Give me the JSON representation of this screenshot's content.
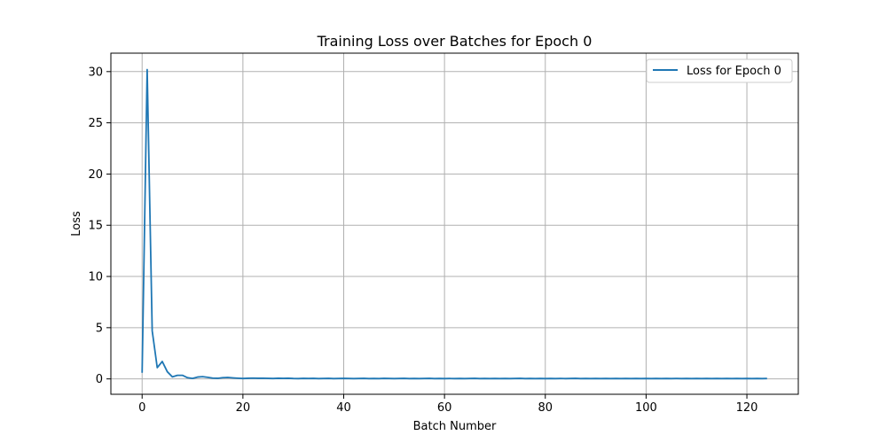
{
  "chart_data": {
    "type": "line",
    "title": "Training Loss over Batches for Epoch 0",
    "xlabel": "Batch Number",
    "ylabel": "Loss",
    "xlim": [
      -6.2,
      130.2
    ],
    "ylim": [
      -1.5,
      31.8
    ],
    "xticks": [
      0,
      20,
      40,
      60,
      80,
      100,
      120
    ],
    "yticks": [
      0,
      5,
      10,
      15,
      20,
      25,
      30
    ],
    "grid": true,
    "legend_position": "top-right",
    "series": [
      {
        "name": "Loss for Epoch 0",
        "color": "#1f77b4",
        "x": [
          0,
          1,
          2,
          3,
          4,
          5,
          6,
          7,
          8,
          9,
          10,
          11,
          12,
          13,
          14,
          15,
          16,
          17,
          18,
          19,
          20,
          21,
          22,
          23,
          24,
          25,
          26,
          27,
          28,
          29,
          30,
          31,
          32,
          33,
          34,
          35,
          36,
          37,
          38,
          39,
          40,
          41,
          42,
          43,
          44,
          45,
          46,
          47,
          48,
          49,
          50,
          51,
          52,
          53,
          54,
          55,
          56,
          57,
          58,
          59,
          60,
          61,
          62,
          63,
          64,
          65,
          66,
          67,
          68,
          69,
          70,
          71,
          72,
          73,
          74,
          75,
          76,
          77,
          78,
          79,
          80,
          81,
          82,
          83,
          84,
          85,
          86,
          87,
          88,
          89,
          90,
          91,
          92,
          93,
          94,
          95,
          96,
          97,
          98,
          99,
          100,
          101,
          102,
          103,
          104,
          105,
          106,
          107,
          108,
          109,
          110,
          111,
          112,
          113,
          114,
          115,
          116,
          117,
          118,
          119,
          120,
          121,
          122,
          123,
          124
        ],
        "values": [
          0.6,
          30.2,
          4.7,
          1.1,
          1.7,
          0.7,
          0.2,
          0.35,
          0.35,
          0.12,
          0.05,
          0.18,
          0.22,
          0.15,
          0.08,
          0.06,
          0.12,
          0.14,
          0.1,
          0.07,
          0.04,
          0.06,
          0.08,
          0.06,
          0.07,
          0.05,
          0.04,
          0.06,
          0.05,
          0.06,
          0.04,
          0.03,
          0.05,
          0.04,
          0.05,
          0.03,
          0.04,
          0.05,
          0.03,
          0.04,
          0.05,
          0.04,
          0.03,
          0.04,
          0.05,
          0.03,
          0.04,
          0.03,
          0.05,
          0.04,
          0.03,
          0.04,
          0.05,
          0.03,
          0.04,
          0.03,
          0.04,
          0.05,
          0.03,
          0.04,
          0.03,
          0.04,
          0.03,
          0.04,
          0.03,
          0.04,
          0.05,
          0.03,
          0.04,
          0.03,
          0.04,
          0.03,
          0.04,
          0.03,
          0.04,
          0.05,
          0.03,
          0.04,
          0.03,
          0.04,
          0.03,
          0.04,
          0.03,
          0.04,
          0.03,
          0.04,
          0.05,
          0.03,
          0.04,
          0.03,
          0.04,
          0.03,
          0.04,
          0.03,
          0.04,
          0.03,
          0.04,
          0.03,
          0.04,
          0.03,
          0.04,
          0.03,
          0.04,
          0.03,
          0.04,
          0.03,
          0.04,
          0.03,
          0.04,
          0.03,
          0.04,
          0.03,
          0.04,
          0.03,
          0.04,
          0.03,
          0.04,
          0.03,
          0.04,
          0.03,
          0.04,
          0.03,
          0.04,
          0.03,
          0.04
        ]
      }
    ]
  }
}
